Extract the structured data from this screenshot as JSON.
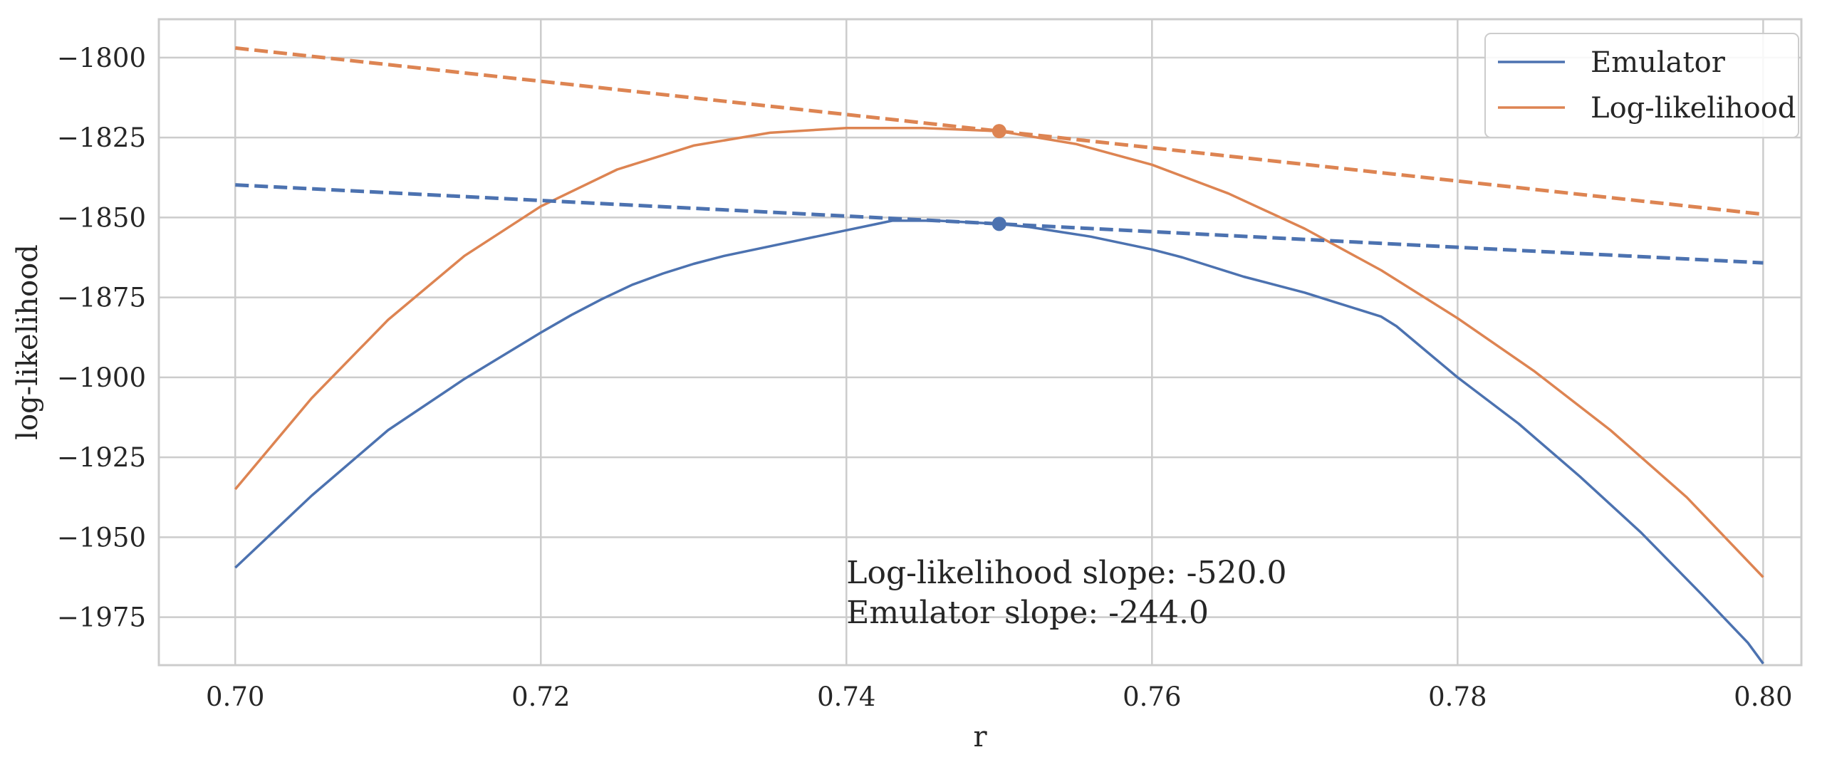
{
  "chart_data": {
    "type": "line",
    "title": "",
    "xlabel": "r",
    "ylabel": "log-likelihood",
    "xlim": [
      0.695,
      0.8025
    ],
    "ylim": [
      -1990,
      -1788
    ],
    "xticks": [
      0.7,
      0.72,
      0.74,
      0.76,
      0.78,
      0.8
    ],
    "xtick_labels": [
      "0.70",
      "0.72",
      "0.74",
      "0.76",
      "0.78",
      "0.80"
    ],
    "yticks": [
      -1800,
      -1825,
      -1850,
      -1875,
      -1900,
      -1925,
      -1950,
      -1975
    ],
    "ytick_labels": [
      "−1800",
      "−1825",
      "−1850",
      "−1875",
      "−1900",
      "−1925",
      "−1950",
      "−1975"
    ],
    "grid": true,
    "legend_position": "top-right",
    "series": [
      {
        "name": "Emulator",
        "color": "#4c72b0",
        "style": "solid",
        "x": [
          0.7,
          0.705,
          0.71,
          0.715,
          0.72,
          0.722,
          0.724,
          0.726,
          0.728,
          0.73,
          0.732,
          0.734,
          0.736,
          0.738,
          0.74,
          0.742,
          0.743,
          0.744,
          0.746,
          0.748,
          0.75,
          0.752,
          0.754,
          0.756,
          0.758,
          0.76,
          0.762,
          0.764,
          0.766,
          0.768,
          0.77,
          0.772,
          0.774,
          0.775,
          0.776,
          0.778,
          0.78,
          0.784,
          0.788,
          0.792,
          0.796,
          0.799,
          0.8
        ],
        "y": [
          -1959.5,
          -1937.0,
          -1916.5,
          -1900.5,
          -1886.0,
          -1880.5,
          -1875.5,
          -1871.0,
          -1867.5,
          -1864.5,
          -1862.0,
          -1860.0,
          -1858.0,
          -1856.0,
          -1854.0,
          -1852.0,
          -1851.0,
          -1851.0,
          -1851.0,
          -1851.5,
          -1852.0,
          -1853.0,
          -1854.5,
          -1856.0,
          -1858.0,
          -1860.0,
          -1862.5,
          -1865.5,
          -1868.5,
          -1871.0,
          -1873.5,
          -1876.5,
          -1879.5,
          -1881.0,
          -1884.0,
          -1892.0,
          -1900.0,
          -1914.5,
          -1931.0,
          -1948.5,
          -1968.0,
          -1983.0,
          -1989.5
        ]
      },
      {
        "name": "Log-likelihood",
        "color": "#dd8452",
        "style": "solid",
        "x": [
          0.7,
          0.705,
          0.71,
          0.715,
          0.72,
          0.725,
          0.73,
          0.735,
          0.74,
          0.745,
          0.75,
          0.755,
          0.76,
          0.765,
          0.77,
          0.775,
          0.78,
          0.785,
          0.79,
          0.795,
          0.8
        ],
        "y": [
          -1935.0,
          -1906.5,
          -1882.0,
          -1862.0,
          -1846.5,
          -1835.0,
          -1827.5,
          -1823.5,
          -1822.0,
          -1822.0,
          -1823.0,
          -1827.0,
          -1833.5,
          -1842.5,
          -1853.5,
          -1866.5,
          -1881.5,
          -1898.0,
          -1916.5,
          -1937.5,
          -1962.5
        ]
      },
      {
        "name": "",
        "color": "#4c72b0",
        "style": "dashed",
        "x": [
          0.7,
          0.8
        ],
        "y": [
          -1839.8,
          -1864.2
        ]
      },
      {
        "name": "",
        "color": "#dd8452",
        "style": "dashed",
        "x": [
          0.7,
          0.8
        ],
        "y": [
          -1797.0,
          -1849.0
        ]
      }
    ],
    "points": [
      {
        "x": 0.75,
        "y": -1852.0,
        "color": "#4c72b0"
      },
      {
        "x": 0.75,
        "y": -1823.0,
        "color": "#dd8452"
      }
    ],
    "legend": [
      {
        "label": "Emulator",
        "color": "#4c72b0"
      },
      {
        "label": "Log-likelihood",
        "color": "#dd8452"
      }
    ],
    "annotations": [
      {
        "text": "Log-likelihood slope: -520.0",
        "x": 0.74,
        "y": -1961.0
      },
      {
        "text": "Emulator slope: -244.0",
        "x": 0.74,
        "y": -1973.5
      }
    ]
  }
}
